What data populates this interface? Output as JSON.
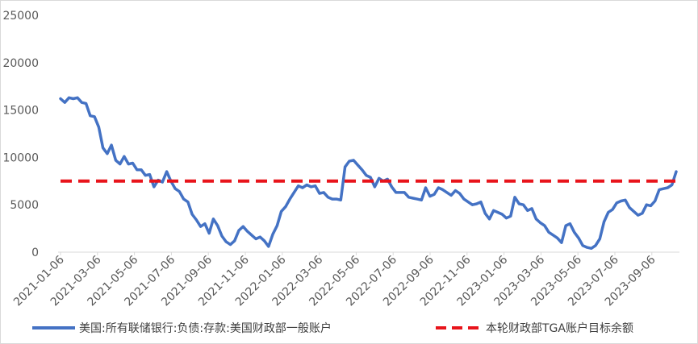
{
  "chart_data": {
    "type": "line",
    "title": "",
    "xlabel": "",
    "ylabel": "",
    "ylim": [
      0,
      25000
    ],
    "yticks": [
      "0",
      "5000",
      "10000",
      "15000",
      "20000",
      "25000"
    ],
    "x_tick_labels": [
      "2021-01-06",
      "2021-03-06",
      "2021-05-06",
      "2021-07-06",
      "2021-09-06",
      "2021-11-06",
      "2022-01-06",
      "2022-03-06",
      "2022-05-06",
      "2022-07-06",
      "2022-09-06",
      "2022-11-06",
      "2023-01-06",
      "2023-03-06",
      "2023-05-06",
      "2023-07-06",
      "2023-09-06"
    ],
    "grid": false,
    "legend_position": "bottom",
    "series": [
      {
        "name": "美国:所有联储银行:负债:存款:美国财政部一般账户",
        "color": "#4472C4",
        "style": "solid",
        "values": [
          16200,
          15800,
          16300,
          16200,
          16300,
          15800,
          15700,
          14400,
          14300,
          13200,
          11000,
          10400,
          11300,
          9700,
          9300,
          10100,
          9300,
          9400,
          8700,
          8700,
          8100,
          8200,
          6900,
          7600,
          7400,
          8500,
          7500,
          6700,
          6400,
          5600,
          5300,
          4000,
          3400,
          2700,
          3000,
          2000,
          3500,
          2800,
          1700,
          1100,
          800,
          1200,
          2300,
          2700,
          2200,
          1800,
          1400,
          1600,
          1200,
          600,
          1900,
          2800,
          4300,
          4800,
          5600,
          6300,
          7000,
          6800,
          7100,
          6900,
          7000,
          6200,
          6300,
          5800,
          5600,
          5600,
          5500,
          9000,
          9600,
          9700,
          9200,
          8700,
          8100,
          7900,
          6900,
          7800,
          7500,
          7700,
          6900,
          6300,
          6300,
          6300,
          5800,
          5700,
          5600,
          5500,
          6800,
          5900,
          6100,
          6800,
          6600,
          6300,
          6000,
          6500,
          6200,
          5600,
          5300,
          5000,
          5100,
          5300,
          4100,
          3500,
          4400,
          4200,
          4000,
          3600,
          3800,
          5800,
          5100,
          5000,
          4400,
          4600,
          3500,
          3100,
          2800,
          2100,
          1800,
          1500,
          1000,
          2800,
          3000,
          2100,
          1500,
          700,
          500,
          400,
          700,
          1400,
          3200,
          4200,
          4500,
          5200,
          5400,
          5500,
          4700,
          4300,
          3900,
          4100,
          5000,
          4900,
          5400,
          6600,
          6700,
          6800,
          7100,
          8500
        ]
      },
      {
        "name": "本轮财政部TGA账户目标余额",
        "color": "#E8141B",
        "style": "dashed",
        "values": [
          7500
        ]
      }
    ]
  }
}
